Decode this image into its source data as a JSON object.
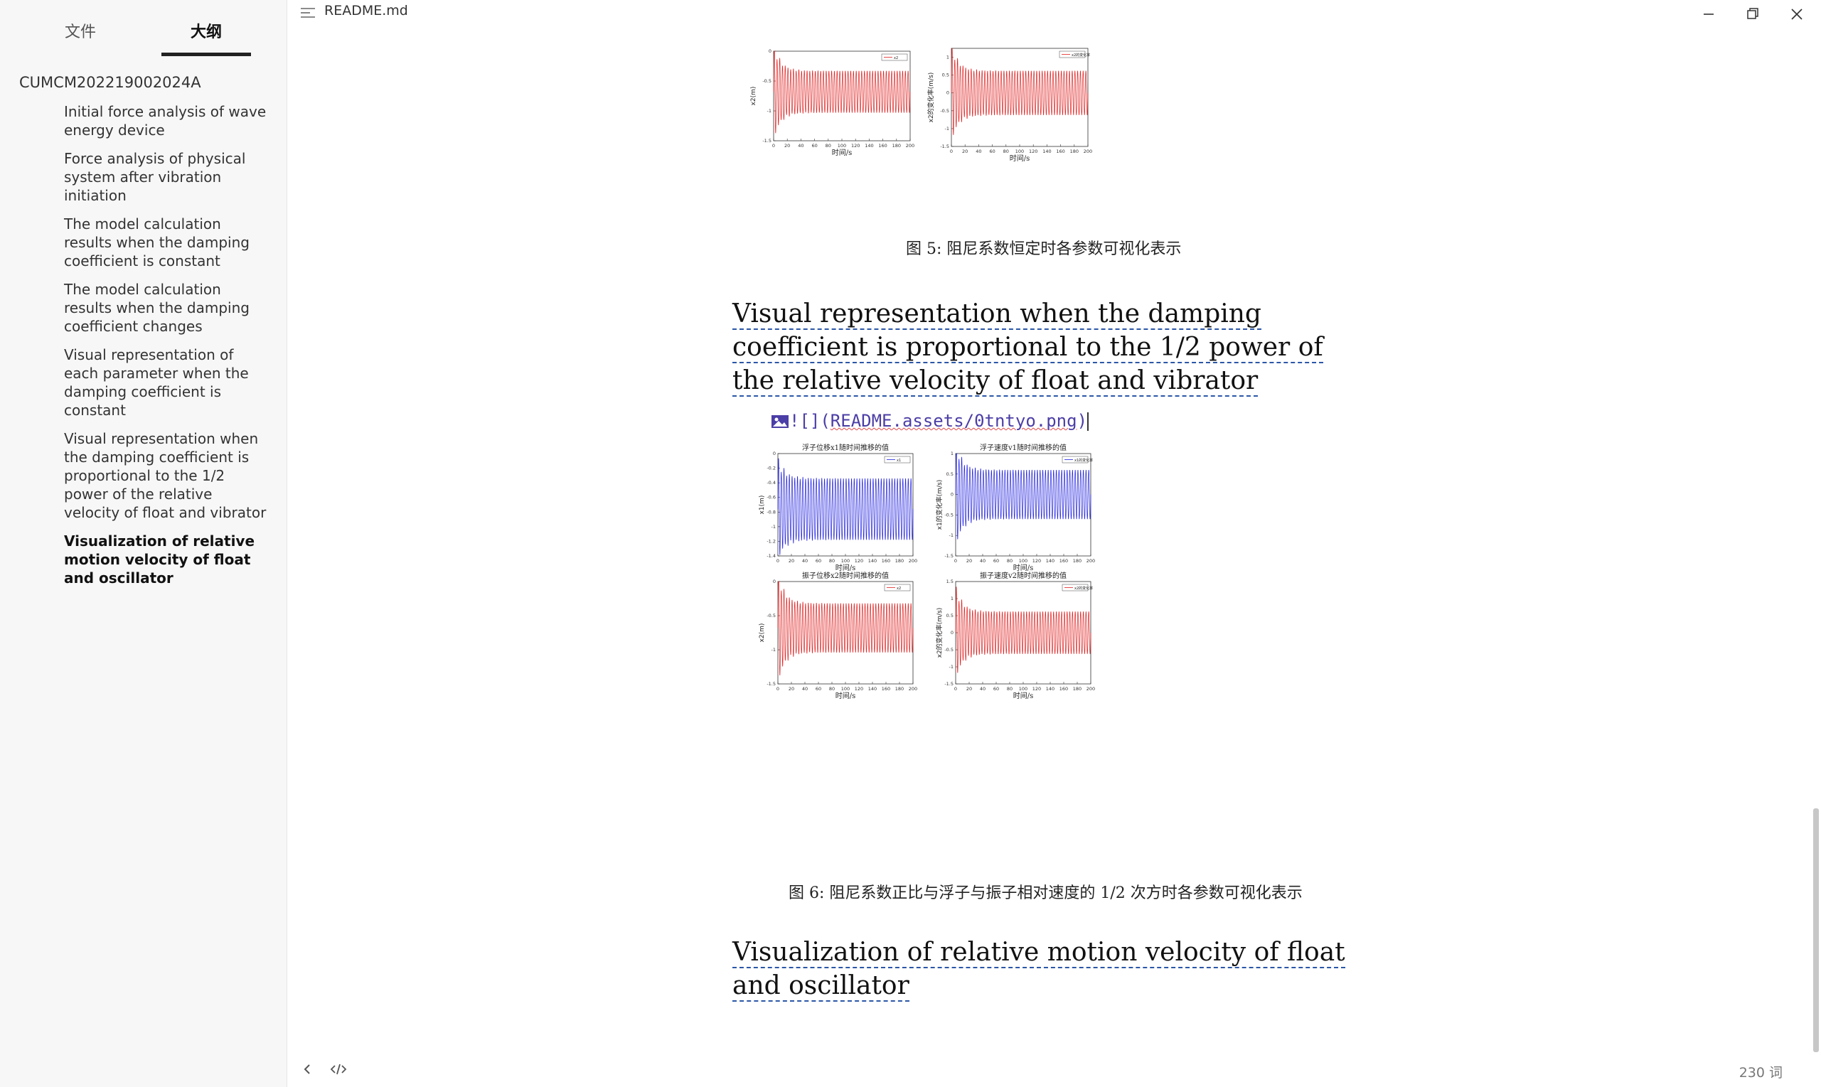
{
  "window": {
    "file_name": "README.md"
  },
  "sidebar": {
    "tabs": [
      {
        "label": "文件"
      },
      {
        "label": "大纲"
      }
    ],
    "root": "CUMCM202219002024A",
    "items": [
      {
        "label": "Initial force analysis of wave energy device"
      },
      {
        "label": "Force analysis of physical system after vibration initiation"
      },
      {
        "label": "The model calculation results when the damping coefficient is constant"
      },
      {
        "label": "The model calculation results when the damping coefficient changes"
      },
      {
        "label": "Visual representation of each parameter when the damping coefficient is constant"
      },
      {
        "label": "Visual representation when the damping coefficient is proportional to the 1/2 power of the relative velocity of float and vibrator"
      },
      {
        "label": "Visualization of relative motion velocity of float and oscillator",
        "active": true
      }
    ]
  },
  "document": {
    "figure5_caption": "图 5: 阻尼系数恒定时各参数可视化表示",
    "heading1": "Visual representation when the damping coefficient is proportional to the 1/2 power of the relative velocity of float and vibrator",
    "image_source": {
      "prefix": "![](",
      "path": "README.assets/0tntyo.png",
      "suffix": ")"
    },
    "figure6_caption": "图 6: 阻尼系数正比与浮子与振子相对速度的 1/2 次方时各参数可视化表示",
    "heading2": "Visualization of relative motion velocity of float and oscillator"
  },
  "statusbar": {
    "word_count": "230 词"
  },
  "colors": {
    "red_series": "#e02020",
    "blue_series": "#2020e0",
    "heading_underline": "#2b57a8",
    "source_text": "#4b3ea6"
  },
  "chart_data": [
    {
      "type": "line",
      "figure": "图 5 (partially visible)",
      "title": "",
      "xlabel": "时间/s",
      "ylabel": "x2(m)",
      "xlim": [
        0,
        200
      ],
      "ylim": [
        -1.5,
        0
      ],
      "xticks": [
        "0",
        "20",
        "40",
        "60",
        "80",
        "100",
        "120",
        "140",
        "160",
        "180",
        "200"
      ],
      "yticks": [
        "0",
        "-0.5",
        "-1",
        "-1.5"
      ],
      "series": [
        {
          "name": "x2",
          "color": "#e02020",
          "oscillation_center": -0.68,
          "steady_amplitude": 0.35,
          "initial_peak_range": [
            -1.45,
            -0.05
          ],
          "periods": 50
        }
      ]
    },
    {
      "type": "line",
      "figure": "图 5 (partially visible)",
      "title": "",
      "xlabel": "时间/s",
      "ylabel": "x2的变化率(m/s)",
      "xlim": [
        0,
        200
      ],
      "ylim": [
        -1.5,
        1.25
      ],
      "xticks": [
        "0",
        "20",
        "40",
        "60",
        "80",
        "100",
        "120",
        "140",
        "160",
        "180",
        "200"
      ],
      "yticks": [
        "1",
        "0.5",
        "0",
        "-0.5",
        "-1",
        "-1.5"
      ],
      "series": [
        {
          "name": "x2的变化率",
          "color": "#e02020",
          "oscillation_center": 0,
          "steady_amplitude": 0.62,
          "initial_peak_range": [
            -1.3,
            1.1
          ],
          "periods": 50
        }
      ]
    },
    {
      "type": "line",
      "figure": "图 6",
      "title": "浮子位移x1随时间推移的值",
      "xlabel": "时间/s",
      "ylabel": "x1(m)",
      "xlim": [
        0,
        200
      ],
      "ylim": [
        -1.4,
        0
      ],
      "xticks": [
        "0",
        "20",
        "40",
        "60",
        "80",
        "100",
        "120",
        "140",
        "160",
        "180",
        "200"
      ],
      "yticks": [
        "0",
        "-0.2",
        "-0.4",
        "-0.6",
        "-0.8",
        "-1",
        "-1.2",
        "-1.4"
      ],
      "series": [
        {
          "name": "x1",
          "color": "#2020e0",
          "oscillation_center": -0.76,
          "steady_amplitude": 0.42,
          "initial_peak_range": [
            -1.38,
            -0.1
          ],
          "periods": 50
        }
      ]
    },
    {
      "type": "line",
      "figure": "图 6",
      "title": "浮子速度v1随时间推移的值",
      "xlabel": "时间/s",
      "ylabel": "x1的变化率(m/s)",
      "xlim": [
        0,
        200
      ],
      "ylim": [
        -1.5,
        1
      ],
      "xticks": [
        "0",
        "20",
        "40",
        "60",
        "80",
        "100",
        "120",
        "140",
        "160",
        "180",
        "200"
      ],
      "yticks": [
        "1",
        "0.5",
        "0",
        "-0.5",
        "-1",
        "-1.5"
      ],
      "series": [
        {
          "name": "x1的变化率",
          "color": "#2020e0",
          "oscillation_center": 0,
          "steady_amplitude": 0.6,
          "initial_peak_range": [
            -1.2,
            0.95
          ],
          "periods": 50
        }
      ]
    },
    {
      "type": "line",
      "figure": "图 6",
      "title": "振子位移x2随时间推移的值",
      "xlabel": "时间/s",
      "ylabel": "x2(m)",
      "xlim": [
        0,
        200
      ],
      "ylim": [
        -1.5,
        0
      ],
      "xticks": [
        "0",
        "20",
        "40",
        "60",
        "80",
        "100",
        "120",
        "140",
        "160",
        "180",
        "200"
      ],
      "yticks": [
        "0",
        "-0.5",
        "-1",
        "-1.5"
      ],
      "series": [
        {
          "name": "x2",
          "color": "#e02020",
          "oscillation_center": -0.68,
          "steady_amplitude": 0.36,
          "initial_peak_range": [
            -1.45,
            -0.1
          ],
          "periods": 50
        }
      ]
    },
    {
      "type": "line",
      "figure": "图 6",
      "title": "振子速度v2随时间推移的值",
      "xlabel": "时间/s",
      "ylabel": "x2的变化率(m/s)",
      "xlim": [
        0,
        200
      ],
      "ylim": [
        -1.5,
        1.5
      ],
      "xticks": [
        "0",
        "20",
        "40",
        "60",
        "80",
        "100",
        "120",
        "140",
        "160",
        "180",
        "200"
      ],
      "yticks": [
        "1.5",
        "1",
        "0.5",
        "0",
        "-0.5",
        "-1",
        "-1.5"
      ],
      "series": [
        {
          "name": "x2的变化率",
          "color": "#e02020",
          "oscillation_center": 0,
          "steady_amplitude": 0.62,
          "initial_peak_range": [
            -1.3,
            1.05
          ],
          "periods": 50
        }
      ]
    }
  ]
}
